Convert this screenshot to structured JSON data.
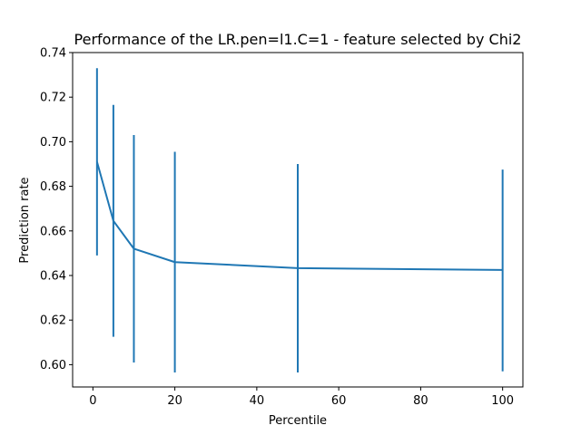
{
  "chart_data": {
    "type": "line",
    "title": "Performance of the LR.pen=l1.C=1 - feature selected by Chi2",
    "xlabel": "Percentile",
    "ylabel": "Prediction rate",
    "xlim": [
      -4.95,
      104.95
    ],
    "ylim": [
      0.59,
      0.74
    ],
    "x_ticks": [
      0,
      20,
      40,
      60,
      80,
      100
    ],
    "x_tick_labels": [
      "0",
      "20",
      "40",
      "60",
      "80",
      "100"
    ],
    "y_ticks": [
      0.6,
      0.62,
      0.64,
      0.66,
      0.68,
      0.7,
      0.72,
      0.74
    ],
    "y_tick_labels": [
      "0.60",
      "0.62",
      "0.64",
      "0.66",
      "0.68",
      "0.70",
      "0.72",
      "0.74"
    ],
    "grid": false,
    "series": [
      {
        "x": [
          1,
          5,
          10,
          20,
          50,
          100
        ],
        "y": [
          0.691,
          0.6645,
          0.652,
          0.646,
          0.6433,
          0.6425
        ],
        "yerr_low": [
          0.649,
          0.6125,
          0.601,
          0.5965,
          0.5965,
          0.597
        ],
        "yerr_high": [
          0.733,
          0.7165,
          0.703,
          0.6955,
          0.69,
          0.6875
        ],
        "color": "#1f77b4"
      }
    ]
  }
}
